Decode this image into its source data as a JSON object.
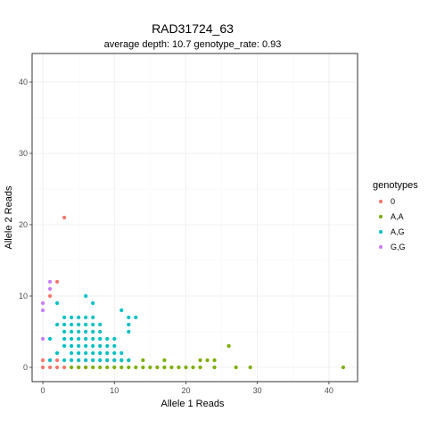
{
  "chart_data": {
    "type": "scatter",
    "title": "RAD31724_63",
    "subtitle": "average depth:  10.7  genotype_rate:  0.93",
    "xlabel": "Allele 1 Reads",
    "ylabel": "Allele 2 Reads",
    "xlim": [
      -1.5,
      44
    ],
    "ylim": [
      -2,
      44
    ],
    "x_ticks": [
      0,
      10,
      20,
      30,
      40
    ],
    "y_ticks": [
      0,
      10,
      20,
      30,
      40
    ],
    "grid": true,
    "legend": {
      "title": "genotypes",
      "position": "right"
    },
    "series": [
      {
        "name": "0",
        "color": "#F8766D",
        "points": [
          [
            0,
            0
          ],
          [
            0,
            1
          ],
          [
            1,
            0
          ],
          [
            1,
            1
          ],
          [
            2,
            0
          ],
          [
            2,
            1
          ],
          [
            3,
            0
          ],
          [
            3,
            21
          ],
          [
            5,
            0
          ],
          [
            5,
            1
          ],
          [
            6,
            0
          ],
          [
            6,
            1
          ],
          [
            9,
            1
          ],
          [
            10,
            1
          ],
          [
            1,
            10
          ],
          [
            2,
            12
          ]
        ]
      },
      {
        "name": "A,A",
        "color": "#7CAE00",
        "points": [
          [
            4,
            0
          ],
          [
            5,
            0
          ],
          [
            6,
            0
          ],
          [
            7,
            0
          ],
          [
            8,
            0
          ],
          [
            9,
            0
          ],
          [
            10,
            0
          ],
          [
            11,
            0
          ],
          [
            12,
            0
          ],
          [
            13,
            0
          ],
          [
            14,
            0
          ],
          [
            15,
            0
          ],
          [
            16,
            0
          ],
          [
            17,
            0
          ],
          [
            18,
            0
          ],
          [
            19,
            0
          ],
          [
            20,
            0
          ],
          [
            21,
            0
          ],
          [
            22,
            0
          ],
          [
            24,
            0
          ],
          [
            27,
            0
          ],
          [
            29,
            0
          ],
          [
            42,
            0
          ],
          [
            11,
            1
          ],
          [
            12,
            1
          ],
          [
            14,
            1
          ],
          [
            17,
            1
          ],
          [
            22,
            1
          ],
          [
            23,
            1
          ],
          [
            24,
            1
          ],
          [
            26,
            3
          ]
        ]
      },
      {
        "name": "A,G",
        "color": "#00BFC4",
        "points": [
          [
            1,
            1
          ],
          [
            1,
            4
          ],
          [
            2,
            2
          ],
          [
            2,
            6
          ],
          [
            2,
            9
          ],
          [
            3,
            1
          ],
          [
            3,
            3
          ],
          [
            3,
            4
          ],
          [
            3,
            5
          ],
          [
            3,
            6
          ],
          [
            3,
            7
          ],
          [
            4,
            1
          ],
          [
            4,
            2
          ],
          [
            4,
            3
          ],
          [
            4,
            4
          ],
          [
            4,
            5
          ],
          [
            4,
            6
          ],
          [
            4,
            7
          ],
          [
            5,
            1
          ],
          [
            5,
            2
          ],
          [
            5,
            3
          ],
          [
            5,
            4
          ],
          [
            5,
            5
          ],
          [
            5,
            6
          ],
          [
            5,
            7
          ],
          [
            6,
            1
          ],
          [
            6,
            2
          ],
          [
            6,
            3
          ],
          [
            6,
            4
          ],
          [
            6,
            5
          ],
          [
            6,
            6
          ],
          [
            6,
            7
          ],
          [
            6,
            10
          ],
          [
            7,
            1
          ],
          [
            7,
            2
          ],
          [
            7,
            3
          ],
          [
            7,
            4
          ],
          [
            7,
            5
          ],
          [
            7,
            6
          ],
          [
            7,
            7
          ],
          [
            7,
            9
          ],
          [
            8,
            1
          ],
          [
            8,
            2
          ],
          [
            8,
            3
          ],
          [
            8,
            4
          ],
          [
            8,
            5
          ],
          [
            8,
            6
          ],
          [
            9,
            1
          ],
          [
            9,
            2
          ],
          [
            9,
            3
          ],
          [
            9,
            4
          ],
          [
            10,
            1
          ],
          [
            10,
            2
          ],
          [
            10,
            3
          ],
          [
            10,
            4
          ],
          [
            11,
            1
          ],
          [
            11,
            2
          ],
          [
            11,
            8
          ],
          [
            12,
            1
          ],
          [
            12,
            5
          ],
          [
            12,
            6
          ],
          [
            12,
            7
          ],
          [
            13,
            7
          ]
        ]
      },
      {
        "name": "G,G",
        "color": "#C77CFF",
        "points": [
          [
            0,
            4
          ],
          [
            0,
            8
          ],
          [
            0,
            9
          ],
          [
            1,
            11
          ],
          [
            1,
            12
          ]
        ]
      }
    ]
  }
}
